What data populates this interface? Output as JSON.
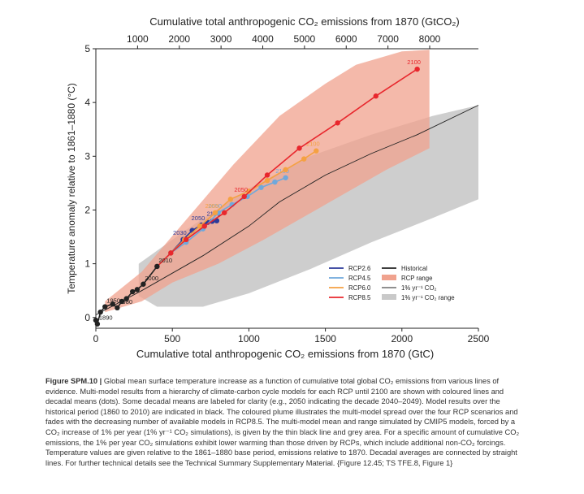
{
  "chart_data": {
    "type": "line",
    "title": "",
    "top_xlabel": "Cumulative total anthropogenic CO₂ emissions from 1870 (GtCO₂)",
    "top_ticks": [
      1000,
      2000,
      3000,
      4000,
      5000,
      6000,
      7000,
      8000
    ],
    "xlabel": "Cumulative total anthropogenic CO₂ emissions from 1870 (GtC)",
    "ylabel": "Temperature anomaly relative to 1861–1880 (°C)",
    "xlim": [
      0,
      2500
    ],
    "ylim": [
      -0.2,
      5
    ],
    "xticks": [
      0,
      500,
      1000,
      1500,
      2000,
      2500
    ],
    "yticks": [
      0,
      1,
      2,
      3,
      4,
      5
    ],
    "legend_position": "bottom-right",
    "colors": {
      "historical": "#222222",
      "rcp26": "#2b3a9a",
      "rcp45": "#6fa8dc",
      "rcp60": "#f5a142",
      "rcp85": "#e8272d",
      "rcp_range": "#f0a28e",
      "pct_range": "#c9c9c9",
      "pct_line": "#222222"
    },
    "legend": [
      {
        "key": "rcp26",
        "label": "RCP2.6",
        "kind": "line"
      },
      {
        "key": "rcp45",
        "label": "RCP4.5",
        "kind": "line"
      },
      {
        "key": "rcp60",
        "label": "RCP6.0",
        "kind": "line"
      },
      {
        "key": "rcp85",
        "label": "RCP8.5",
        "kind": "line"
      },
      {
        "key": "historical",
        "label": "Historical",
        "kind": "line"
      },
      {
        "key": "rcp_range",
        "label": "RCP range",
        "kind": "patch"
      },
      {
        "key": "pct_line",
        "label": "1% yr⁻¹ CO₂",
        "kind": "thinline"
      },
      {
        "key": "pct_range",
        "label": "1% yr⁻¹ CO₂ range",
        "kind": "patch"
      }
    ],
    "historical": {
      "x": [
        0,
        10,
        30,
        60,
        110,
        140,
        170,
        200,
        240,
        270,
        310,
        400
      ],
      "y": [
        -0.05,
        -0.12,
        0.1,
        0.2,
        0.25,
        0.18,
        0.3,
        0.35,
        0.48,
        0.52,
        0.62,
        0.95
      ],
      "labels": [
        {
          "text": "1890",
          "x": 10,
          "y": -0.12
        },
        {
          "text": "1950",
          "x": 60,
          "y": 0.2
        },
        {
          "text": "1980",
          "x": 140,
          "y": 0.18
        },
        {
          "text": "2000",
          "x": 310,
          "y": 0.62
        },
        {
          "text": "2010",
          "x": 400,
          "y": 0.95
        }
      ]
    },
    "series": [
      {
        "key": "rcp26",
        "x": [
          400,
          490,
          570,
          630,
          690,
          730,
          760,
          790
        ],
        "y": [
          0.95,
          1.2,
          1.45,
          1.62,
          1.72,
          1.77,
          1.79,
          1.8
        ],
        "labels": [
          {
            "text": "2030",
            "x": 570,
            "y": 1.45
          },
          {
            "text": "2050",
            "x": 690,
            "y": 1.72
          },
          {
            "text": "2100",
            "x": 790,
            "y": 1.8
          }
        ]
      },
      {
        "key": "rcp45",
        "x": [
          400,
          490,
          590,
          700,
          800,
          890,
          990,
          1080,
          1170,
          1240
        ],
        "y": [
          0.95,
          1.2,
          1.4,
          1.65,
          1.95,
          2.1,
          2.25,
          2.42,
          2.52,
          2.6
        ],
        "labels": [
          {
            "text": "2050",
            "x": 800,
            "y": 1.95
          },
          {
            "text": "2100",
            "x": 1240,
            "y": 2.6
          }
        ]
      },
      {
        "key": "rcp60",
        "x": [
          400,
          490,
          580,
          680,
          780,
          880,
          1000,
          1120,
          1240,
          1360,
          1440
        ],
        "y": [
          0.95,
          1.2,
          1.45,
          1.7,
          1.95,
          2.2,
          2.35,
          2.55,
          2.75,
          2.95,
          3.1
        ],
        "labels": [
          {
            "text": "2050",
            "x": 780,
            "y": 1.95
          },
          {
            "text": "2100",
            "x": 1440,
            "y": 3.1
          }
        ]
      },
      {
        "key": "rcp85",
        "x": [
          400,
          490,
          590,
          710,
          840,
          970,
          1120,
          1330,
          1580,
          1830,
          2100
        ],
        "y": [
          0.95,
          1.2,
          1.45,
          1.7,
          1.95,
          2.25,
          2.65,
          3.15,
          3.62,
          4.12,
          4.62
        ],
        "labels": [
          {
            "text": "2050",
            "x": 970,
            "y": 2.25
          },
          {
            "text": "2100",
            "x": 2100,
            "y": 4.62
          }
        ]
      }
    ],
    "pct_line": {
      "x": [
        0,
        300,
        700,
        1000,
        1200,
        1500,
        1800,
        2100,
        2500
      ],
      "y": [
        0.05,
        0.5,
        1.15,
        1.7,
        2.15,
        2.65,
        3.05,
        3.4,
        3.95
      ]
    },
    "pct_range": {
      "upper_x": [
        280,
        600,
        1000,
        1400,
        1800,
        2200,
        2500
      ],
      "upper_y": [
        1.0,
        1.65,
        2.4,
        3.0,
        3.4,
        3.75,
        3.95
      ],
      "lower_x": [
        2500,
        2200,
        1800,
        1400,
        1000,
        700,
        400,
        280
      ],
      "lower_y": [
        2.2,
        1.85,
        1.4,
        0.9,
        0.45,
        0.2,
        0.2,
        0.4
      ]
    },
    "rcp_range": {
      "upper_x": [
        60,
        300,
        600,
        900,
        1200,
        1500,
        1700,
        2000,
        2180
      ],
      "upper_y": [
        0.3,
        0.85,
        1.85,
        2.85,
        3.75,
        4.35,
        4.7,
        4.95,
        4.98
      ],
      "lower_x": [
        2180,
        1900,
        1500,
        1100,
        800,
        500,
        300,
        60
      ],
      "lower_y": [
        3.15,
        2.75,
        2.1,
        1.45,
        1.0,
        0.65,
        0.3,
        0.1
      ]
    }
  },
  "caption": {
    "title": "Figure SPM.10 |",
    "text": " Global mean surface temperature increase as a function of cumulative total global CO₂ emissions from various lines of evidence. Multi-model results from a hierarchy of climate-carbon cycle models for each RCP until 2100 are shown with coloured lines and decadal means (dots). Some decadal means are labeled for clarity (e.g., 2050 indicating the decade 2040–2049). Model results over the historical period (1860 to 2010) are indicated in black. The coloured plume illustrates the multi-model spread over the four RCP scenarios and fades with the decreasing number of available models in RCP8.5. The multi-model mean and range simulated by CMIP5 models, forced by a CO₂ increase of 1% per year (1% yr⁻¹ CO₂ simulations), is given by the thin black line and grey area. For a specific amount of cumulative CO₂ emissions, the 1% per year CO₂ simulations exhibit lower warming than those driven by RCPs, which include additional non-CO₂ forcings. Temperature values are given relative to the 1861–1880 base period, emissions relative to 1870. Decadal averages are connected by straight lines. For further technical details see the Technical Summary Supplementary Material. {Figure 12.45; TS TFE.8, Figure 1}"
  }
}
